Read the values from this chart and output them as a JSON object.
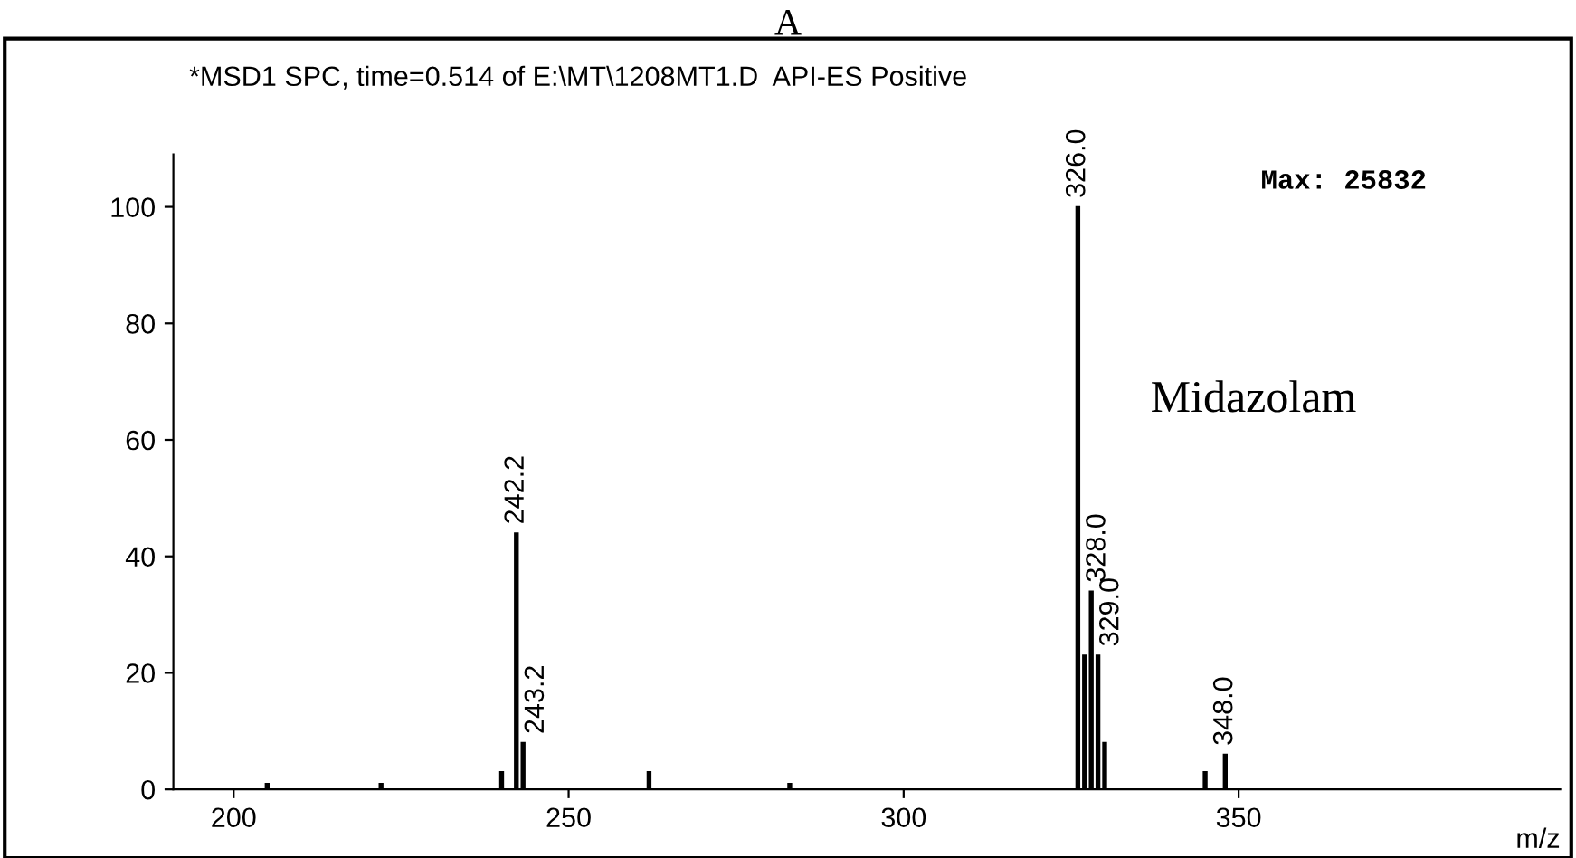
{
  "chart_data": {
    "type": "bar",
    "title": "A",
    "annotations": [
      "*MSD1 SPC, time=0.514 of E:\\MT\\1208MT1.D  API-ES Positive",
      "Max: 25832",
      "Midazolam",
      {
        "text": "242.2",
        "x": 242.2,
        "y": 44
      },
      {
        "text": "243.2",
        "x": 243.2,
        "y": 8
      },
      {
        "text": "326.0",
        "x": 326.0,
        "y": 100
      },
      {
        "text": "328.0",
        "x": 328.0,
        "y": 34
      },
      {
        "text": "329.0",
        "x": 329.0,
        "y": 23
      },
      {
        "text": "348.0",
        "x": 348.0,
        "y": 6
      }
    ],
    "xlabel": "m/z",
    "x": [
      205,
      222,
      240,
      242.2,
      243.2,
      262,
      283,
      326.0,
      327,
      328.0,
      329.0,
      330,
      345,
      348.0
    ],
    "values": [
      1,
      1,
      3,
      44,
      8,
      3,
      1,
      100,
      23,
      34,
      23,
      8,
      3,
      6
    ],
    "color": "#000000",
    "xlim": [
      191,
      398
    ],
    "xticks": [
      200,
      250,
      300,
      350
    ],
    "ylim": [
      0,
      109
    ],
    "yticks": [
      0,
      20,
      40,
      60,
      80,
      100
    ],
    "grid": false
  }
}
